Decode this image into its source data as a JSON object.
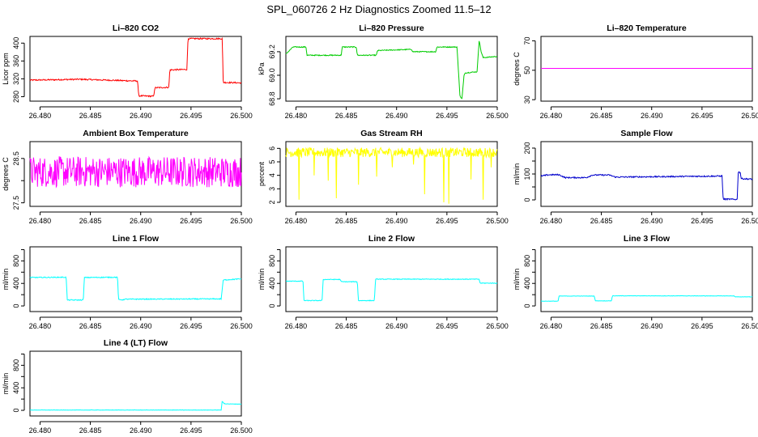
{
  "figure": {
    "title": "SPL_060726  2 Hz Diagnostics Zoomed 11.5–12"
  },
  "chart_data": [
    {
      "id": "co2",
      "type": "line",
      "title": "Li–820 CO2",
      "xlabel": "",
      "ylabel": "Licor ppm",
      "color": "#ff0000",
      "xlim": [
        26.479,
        26.5
      ],
      "ylim": [
        270,
        415
      ],
      "xticks": [
        "26.480",
        "26.485",
        "26.490",
        "26.495",
        "26.500"
      ],
      "yticks": [
        280,
        320,
        360,
        400
      ],
      "x": [
        26.479,
        26.484,
        26.4897,
        26.4898,
        26.4913,
        26.4914,
        26.4928,
        26.4929,
        26.4946,
        26.4947,
        26.4981,
        26.4982,
        26.5
      ],
      "y": [
        317,
        319,
        315,
        282,
        281,
        300,
        301,
        340,
        341,
        410,
        410,
        312,
        311
      ],
      "noise": 1.5
    },
    {
      "id": "pressure",
      "type": "line",
      "title": "Li–820 Pressure",
      "xlabel": "",
      "ylabel": "kPa",
      "color": "#00cc00",
      "xlim": [
        26.479,
        26.5
      ],
      "ylim": [
        68.78,
        69.33
      ],
      "xticks": [
        "26.480",
        "26.485",
        "26.490",
        "26.495",
        "26.500"
      ],
      "yticks": [
        68.8,
        69.0,
        69.2
      ],
      "yticklabels": [
        "68.8",
        "69.0",
        "69.2"
      ],
      "x": [
        26.479,
        26.4797,
        26.481,
        26.4811,
        26.4845,
        26.4846,
        26.486,
        26.4861,
        26.488,
        26.4881,
        26.4915,
        26.4916,
        26.4939,
        26.494,
        26.496,
        26.4963,
        26.4965,
        26.4967,
        26.4968,
        26.498,
        26.4982,
        26.4984,
        26.4986,
        26.5
      ],
      "y": [
        69.18,
        69.24,
        69.24,
        69.17,
        69.17,
        69.24,
        69.24,
        69.17,
        69.17,
        69.21,
        69.22,
        69.2,
        69.2,
        69.24,
        69.24,
        68.82,
        68.8,
        69.0,
        69.02,
        69.03,
        69.3,
        69.2,
        69.15,
        69.16
      ],
      "noise": 0.004
    },
    {
      "id": "temp",
      "type": "line",
      "title": "Li–820 Temperature",
      "xlabel": "",
      "ylabel": "degrees C",
      "color": "#ff00ff",
      "xlim": [
        26.479,
        26.5
      ],
      "ylim": [
        29,
        73
      ],
      "xticks": [
        "26.480",
        "26.485",
        "26.490",
        "26.495",
        "26.500"
      ],
      "yticks": [
        30,
        50,
        70
      ],
      "x": [
        26.479,
        26.5
      ],
      "y": [
        51.3,
        51.3
      ],
      "noise": 0
    },
    {
      "id": "abox",
      "type": "line",
      "title": "Ambient Box Temperature",
      "xlabel": "",
      "ylabel": "degrees C",
      "color": "#ff00ff",
      "xlim": [
        26.479,
        26.5
      ],
      "ylim": [
        27.42,
        28.88
      ],
      "xticks": [
        "26.480",
        "26.485",
        "26.490",
        "26.495",
        "26.500"
      ],
      "yticks": [
        27.5,
        28.0,
        28.5
      ],
      "yticklabels": [
        "27.5",
        "",
        "28.5"
      ],
      "x": [
        26.479,
        26.5
      ],
      "y": [
        28.2,
        28.2
      ],
      "noise": 0.35
    },
    {
      "id": "rh",
      "type": "line",
      "title": "Gas Stream RH",
      "xlabel": "",
      "ylabel": "percent",
      "color": "#ffff00",
      "xlim": [
        26.479,
        26.5
      ],
      "ylim": [
        1.7,
        6.5
      ],
      "xticks": [
        "26.480",
        "26.485",
        "26.490",
        "26.495",
        "26.500"
      ],
      "yticks": [
        2,
        3,
        4,
        5,
        6
      ],
      "x": [
        26.479,
        26.5
      ],
      "y": [
        5.7,
        5.7
      ],
      "noise": 0.35,
      "spikes": [
        [
          26.4803,
          2.2
        ],
        [
          26.4818,
          4.0
        ],
        [
          26.4832,
          3.6
        ],
        [
          26.484,
          2.3
        ],
        [
          26.4862,
          3.3
        ],
        [
          26.488,
          3.9
        ],
        [
          26.4896,
          4.6
        ],
        [
          26.4917,
          4.8
        ],
        [
          26.4928,
          2.6
        ],
        [
          26.4947,
          2.0
        ],
        [
          26.4952,
          1.9
        ],
        [
          26.4974,
          3.7
        ],
        [
          26.4986,
          2.2
        ],
        [
          26.4994,
          4.6
        ]
      ]
    },
    {
      "id": "sflow",
      "type": "line",
      "title": "Sample Flow",
      "xlabel": "",
      "ylabel": "ml/min",
      "color": "#0000cc",
      "xlim": [
        26.479,
        26.5
      ],
      "ylim": [
        -25,
        225
      ],
      "xticks": [
        "26.480",
        "26.485",
        "26.490",
        "26.495",
        "26.500"
      ],
      "yticks": [
        0,
        50,
        100,
        150,
        200
      ],
      "yticklabels": [
        "0",
        "",
        "100",
        "",
        "200"
      ],
      "x": [
        26.479,
        26.4798,
        26.4808,
        26.4814,
        26.4835,
        26.4841,
        26.4858,
        26.4864,
        26.497,
        26.4971,
        26.4985,
        26.4986,
        26.4988,
        26.4989,
        26.5
      ],
      "y": [
        92,
        97,
        97,
        86,
        86,
        96,
        96,
        88,
        92,
        3,
        2,
        110,
        105,
        82,
        80
      ],
      "noise": 2.5
    },
    {
      "id": "l1",
      "type": "line",
      "title": "Line 1 Flow",
      "xlabel": "",
      "ylabel": "ml/min",
      "color": "#00ffff",
      "xlim": [
        26.479,
        26.5
      ],
      "ylim": [
        -100,
        1050
      ],
      "xticks": [
        "26.480",
        "26.485",
        "26.490",
        "26.495",
        "26.500"
      ],
      "yticks": [
        0,
        200,
        400,
        600,
        800,
        1000
      ],
      "yticklabels": [
        "0",
        "",
        "400",
        "",
        "800",
        ""
      ],
      "x": [
        26.479,
        26.4826,
        26.4827,
        26.4843,
        26.4844,
        26.4877,
        26.4878,
        26.4883,
        26.4884,
        26.498,
        26.4982,
        26.499,
        26.5
      ],
      "y": [
        505,
        510,
        105,
        105,
        505,
        510,
        110,
        110,
        120,
        125,
        460,
        470,
        480
      ],
      "noise": 8
    },
    {
      "id": "l2",
      "type": "line",
      "title": "Line 2 Flow",
      "xlabel": "",
      "ylabel": "ml/min",
      "color": "#00ffff",
      "xlim": [
        26.479,
        26.5
      ],
      "ylim": [
        -100,
        1050
      ],
      "xticks": [
        "26.480",
        "26.485",
        "26.490",
        "26.495",
        "26.500"
      ],
      "yticks": [
        0,
        200,
        400,
        600,
        800,
        1000
      ],
      "yticklabels": [
        "0",
        "",
        "400",
        "",
        "800",
        ""
      ],
      "x": [
        26.479,
        26.4807,
        26.4808,
        26.4826,
        26.4827,
        26.4844,
        26.4845,
        26.4861,
        26.4862,
        26.4878,
        26.4879,
        26.4982,
        26.4983,
        26.5
      ],
      "y": [
        440,
        440,
        95,
        95,
        470,
        470,
        430,
        430,
        95,
        95,
        475,
        475,
        405,
        405
      ],
      "noise": 6
    },
    {
      "id": "l3",
      "type": "line",
      "title": "Line 3 Flow",
      "xlabel": "",
      "ylabel": "ml/min",
      "color": "#00ffff",
      "xlim": [
        26.479,
        26.5
      ],
      "ylim": [
        -100,
        1050
      ],
      "xticks": [
        "26.480",
        "26.485",
        "26.490",
        "26.495",
        "26.500"
      ],
      "yticks": [
        0,
        200,
        400,
        600,
        800,
        1000
      ],
      "yticklabels": [
        "0",
        "",
        "400",
        "",
        "800",
        ""
      ],
      "x": [
        26.479,
        26.4807,
        26.4808,
        26.4843,
        26.4844,
        26.486,
        26.4861,
        26.4982,
        26.4983,
        26.5
      ],
      "y": [
        85,
        85,
        175,
        175,
        90,
        90,
        180,
        178,
        160,
        162
      ],
      "noise": 3
    },
    {
      "id": "l4",
      "type": "line",
      "title": "Line 4 (LT) Flow",
      "xlabel": "",
      "ylabel": "ml/min",
      "color": "#00ffff",
      "xlim": [
        26.479,
        26.5
      ],
      "ylim": [
        -100,
        1050
      ],
      "xticks": [
        "26.480",
        "26.485",
        "26.490",
        "26.495",
        "26.500"
      ],
      "yticks": [
        0,
        200,
        400,
        600,
        800,
        1000
      ],
      "yticklabels": [
        "0",
        "",
        "400",
        "",
        "800",
        ""
      ],
      "x": [
        26.479,
        26.498,
        26.4981,
        26.4983,
        26.4985,
        26.5
      ],
      "y": [
        5,
        5,
        160,
        120,
        115,
        110
      ],
      "noise": 3
    }
  ]
}
